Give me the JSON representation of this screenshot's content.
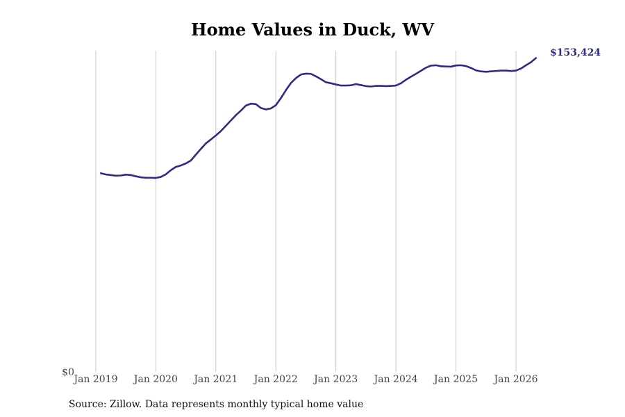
{
  "chart_data": {
    "type": "line",
    "title": "Home Values in Duck, WV",
    "xlabel": "",
    "ylabel": "",
    "y_tick_labels": [
      "$0"
    ],
    "x_tick_labels": [
      "Jan 2019",
      "Jan 2020",
      "Jan 2021",
      "Jan 2022",
      "Jan 2023",
      "Jan 2024",
      "Jan 2025",
      "Jan 2026"
    ],
    "end_label": "$153,424",
    "ylim": [
      0,
      157000
    ],
    "grid": "vertical",
    "legend": "none",
    "colors": {
      "line": "#2e2b87",
      "grid": "#c8c8c8"
    },
    "series": [
      {
        "x": [
          "2019-02",
          "2019-03",
          "2019-04",
          "2019-05",
          "2019-06",
          "2019-07",
          "2019-08",
          "2019-09",
          "2019-10",
          "2019-11",
          "2019-12",
          "2020-01",
          "2020-02",
          "2020-03",
          "2020-04",
          "2020-05",
          "2020-06",
          "2020-07",
          "2020-08",
          "2020-09",
          "2020-10",
          "2020-11",
          "2020-12",
          "2021-01",
          "2021-02",
          "2021-03",
          "2021-04",
          "2021-05",
          "2021-06",
          "2021-07",
          "2021-08",
          "2021-09",
          "2021-10",
          "2021-11",
          "2021-12",
          "2022-01",
          "2022-02",
          "2022-03",
          "2022-04",
          "2022-05",
          "2022-06",
          "2022-07",
          "2022-08",
          "2022-09",
          "2022-10",
          "2022-11",
          "2022-12",
          "2023-01",
          "2023-02",
          "2023-03",
          "2023-04",
          "2023-05",
          "2023-06",
          "2023-07",
          "2023-08",
          "2023-09",
          "2023-10",
          "2023-11",
          "2023-12",
          "2024-01",
          "2024-02",
          "2024-03",
          "2024-04",
          "2024-05",
          "2024-06",
          "2024-07",
          "2024-08",
          "2024-09",
          "2024-10",
          "2024-11",
          "2024-12",
          "2025-01",
          "2025-02",
          "2025-03",
          "2025-04",
          "2025-05",
          "2025-06",
          "2025-07",
          "2025-08",
          "2025-09",
          "2025-10",
          "2025-11",
          "2025-12",
          "2026-01",
          "2026-02",
          "2026-03",
          "2026-04",
          "2026-05"
        ],
        "y": [
          97100,
          96500,
          96200,
          95900,
          96000,
          96400,
          96200,
          95600,
          95100,
          94900,
          94900,
          94800,
          95300,
          96600,
          98600,
          100200,
          100900,
          101900,
          103300,
          106200,
          109000,
          111700,
          113600,
          115600,
          117700,
          120300,
          122900,
          125500,
          127700,
          130200,
          131100,
          130900,
          129000,
          128300,
          128800,
          130400,
          133800,
          137700,
          141200,
          143600,
          145400,
          145800,
          145700,
          144500,
          143100,
          141600,
          141100,
          140500,
          140000,
          140000,
          140100,
          140700,
          140200,
          139700,
          139500,
          139800,
          139800,
          139700,
          139800,
          140000,
          141100,
          142800,
          144300,
          145700,
          147200,
          148700,
          149700,
          149900,
          149400,
          149300,
          149200,
          149800,
          149900,
          149500,
          148600,
          147400,
          146900,
          146700,
          146900,
          147100,
          147300,
          147300,
          147100,
          147300,
          148300,
          149900,
          151400,
          153424
        ]
      }
    ]
  },
  "source": "Source: Zillow. Data represents monthly typical home value"
}
